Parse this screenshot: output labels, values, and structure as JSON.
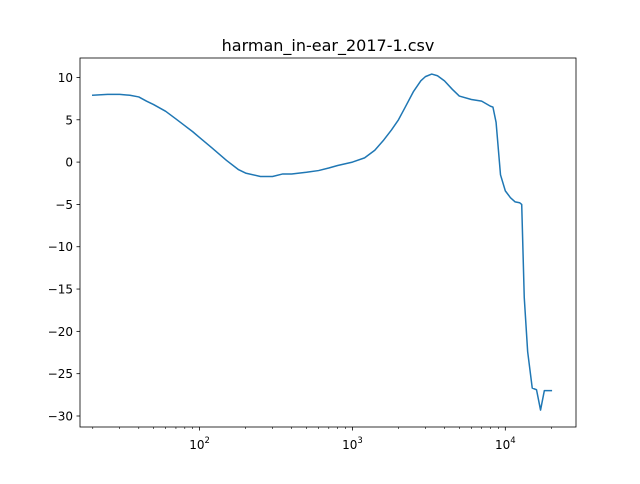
{
  "chart_data": {
    "type": "line",
    "title": "harman_in-ear_2017-1.csv",
    "xlabel": "",
    "ylabel": "",
    "xscale": "log",
    "xlim": [
      16.5,
      29000
    ],
    "ylim": [
      -31.3,
      12.3
    ],
    "grid": false,
    "legend": "none",
    "x_ticks": [
      {
        "value": 100,
        "base": "10",
        "exp": "2"
      },
      {
        "value": 1000,
        "base": "10",
        "exp": "3"
      },
      {
        "value": 10000,
        "base": "10",
        "exp": "4"
      }
    ],
    "y_ticks": [
      {
        "value": 10,
        "label": "10"
      },
      {
        "value": 5,
        "label": "5"
      },
      {
        "value": 0,
        "label": "0"
      },
      {
        "value": -5,
        "label": "−5"
      },
      {
        "value": -10,
        "label": "−10"
      },
      {
        "value": -15,
        "label": "−15"
      },
      {
        "value": -20,
        "label": "−20"
      },
      {
        "value": -25,
        "label": "−25"
      },
      {
        "value": -30,
        "label": "−30"
      }
    ],
    "series": [
      {
        "color": "#1f77b4",
        "x": [
          20,
          25,
          30,
          35,
          40,
          45,
          50,
          60,
          70,
          80,
          90,
          100,
          120,
          150,
          180,
          200,
          250,
          300,
          350,
          400,
          500,
          600,
          700,
          800,
          1000,
          1200,
          1400,
          1600,
          1800,
          2000,
          2200,
          2500,
          2800,
          3000,
          3300,
          3600,
          4000,
          4500,
          5000,
          6000,
          7000,
          8000,
          8300,
          8700,
          9300,
          10000,
          10800,
          11600,
          12400,
          12800,
          13300,
          14000,
          15000,
          16000,
          17000,
          18000,
          19000,
          20000
        ],
        "y": [
          7.9,
          8.0,
          8.0,
          7.9,
          7.7,
          7.2,
          6.8,
          6.0,
          5.1,
          4.3,
          3.6,
          2.9,
          1.7,
          0.2,
          -0.9,
          -1.3,
          -1.7,
          -1.7,
          -1.4,
          -1.4,
          -1.2,
          -1.0,
          -0.7,
          -0.4,
          0.0,
          0.5,
          1.4,
          2.6,
          3.8,
          5.0,
          6.4,
          8.3,
          9.6,
          10.1,
          10.4,
          10.2,
          9.6,
          8.6,
          7.8,
          7.4,
          7.2,
          6.6,
          6.5,
          4.7,
          -1.5,
          -3.4,
          -4.2,
          -4.7,
          -4.8,
          -5.0,
          -16.0,
          -22.4,
          -26.7,
          -26.9,
          -29.3,
          -27.0,
          -27.0,
          -27.0
        ]
      }
    ]
  }
}
